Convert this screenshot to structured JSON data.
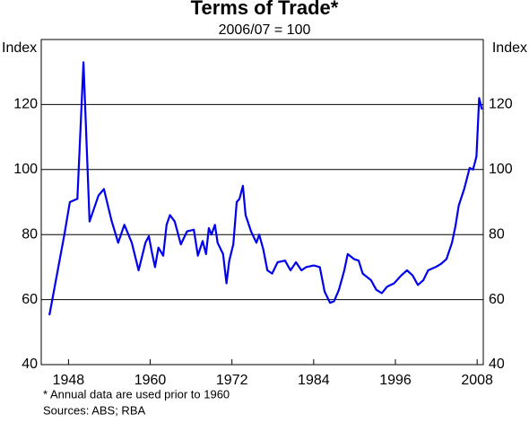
{
  "chart_data": {
    "type": "line",
    "title": "Terms of Trade*",
    "subtitle": "2006/07 = 100",
    "y_label": "Index",
    "y2_label": "Index",
    "notes": [
      "* Annual data are used prior to 1960",
      "Sources: ABS; RBA"
    ],
    "xlim": [
      1944,
      2008.9
    ],
    "xticks": [
      1948,
      1960,
      1972,
      1984,
      1996,
      2008
    ],
    "ylim": [
      40,
      140
    ],
    "yticks": [
      40,
      60,
      80,
      100,
      120
    ],
    "y2lim": [
      40,
      140
    ],
    "y2ticks": [
      40,
      60,
      80,
      100,
      120
    ],
    "grid": true,
    "series": [
      {
        "name": "Terms of Trade",
        "color": "#0000ee",
        "x": [
          1945.2,
          1947.4,
          1948.2,
          1949.3,
          1950.2,
          1951.1,
          1952.4,
          1953.2,
          1954.3,
          1955.3,
          1956.2,
          1957.3,
          1958.3,
          1959.3,
          1959.8,
          1960.3,
          1960.7,
          1961.2,
          1961.9,
          1962.4,
          1962.9,
          1963.6,
          1964.5,
          1965.4,
          1966.4,
          1967.0,
          1967.7,
          1968.2,
          1968.6,
          1969.0,
          1969.5,
          1969.9,
          1970.7,
          1971.2,
          1971.6,
          1972.2,
          1972.7,
          1973.1,
          1973.6,
          1974.0,
          1974.8,
          1975.6,
          1976.0,
          1976.6,
          1977.2,
          1977.9,
          1978.7,
          1979.8,
          1980.6,
          1981.4,
          1982.2,
          1982.9,
          1984.0,
          1984.9,
          1985.6,
          1986.4,
          1987.0,
          1987.7,
          1988.5,
          1989.0,
          1989.9,
          1990.6,
          1991.2,
          1992.4,
          1993.2,
          1994.0,
          1994.8,
          1995.8,
          1996.9,
          1997.7,
          1998.5,
          1999.3,
          2000.1,
          2000.8,
          2001.9,
          2002.7,
          2003.5,
          2004.3,
          2004.8,
          2005.3,
          2006.1,
          2006.9,
          2007.4,
          2007.9,
          2008.3,
          2008.7
        ],
        "values": [
          55.2,
          80,
          90,
          91,
          133,
          84,
          92,
          94,
          84.5,
          77.5,
          83,
          77.5,
          69,
          77.5,
          79.5,
          74,
          70,
          76,
          73.5,
          83,
          86,
          84,
          77,
          81,
          81.5,
          73.5,
          78,
          74,
          82,
          80,
          83,
          77.5,
          74,
          65,
          72,
          77,
          90,
          91,
          95,
          86,
          81,
          77.5,
          80,
          75.5,
          69,
          68,
          71.5,
          72,
          69,
          71.5,
          69,
          70,
          70.5,
          70,
          62.5,
          59,
          59.5,
          63,
          69,
          74,
          72.5,
          72,
          68,
          66,
          63,
          62,
          64,
          65,
          67.5,
          69,
          67.5,
          64.5,
          66,
          69,
          70,
          71,
          72.5,
          77.5,
          82.5,
          89,
          94,
          100.5,
          100,
          104,
          122,
          118.5
        ]
      }
    ]
  }
}
